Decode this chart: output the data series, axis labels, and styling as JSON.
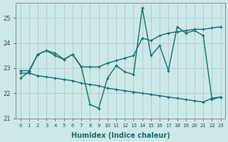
{
  "xlabel": "Humidex (Indice chaleur)",
  "background_color": "#cce8e8",
  "grid_color": "#aacfcf",
  "line_color": "#1a6b6b",
  "x_values": [
    0,
    1,
    2,
    3,
    4,
    5,
    6,
    7,
    8,
    9,
    10,
    11,
    12,
    13,
    14,
    15,
    16,
    17,
    18,
    19,
    20,
    21,
    22,
    23
  ],
  "series1": [
    22.6,
    22.85,
    23.55,
    23.7,
    23.5,
    23.35,
    23.55,
    23.05,
    21.55,
    21.4,
    22.6,
    23.1,
    22.85,
    22.75,
    25.4,
    23.5,
    23.9,
    22.9,
    24.65,
    24.4,
    24.5,
    24.3,
    21.75,
    21.85
  ],
  "series2": [
    22.9,
    22.9,
    23.55,
    23.7,
    23.6,
    23.35,
    23.55,
    23.05,
    23.05,
    23.05,
    23.2,
    23.3,
    23.4,
    23.5,
    24.2,
    24.1,
    24.3,
    24.4,
    24.45,
    24.5,
    24.55,
    24.55,
    24.6,
    24.65
  ],
  "series3": [
    22.8,
    22.8,
    22.7,
    22.65,
    22.6,
    22.55,
    22.5,
    22.4,
    22.35,
    22.3,
    22.2,
    22.15,
    22.1,
    22.05,
    22.0,
    21.95,
    21.9,
    21.85,
    21.8,
    21.75,
    21.7,
    21.65,
    21.8,
    21.85
  ],
  "ylim": [
    21.0,
    25.6
  ],
  "yticks": [
    21,
    22,
    23,
    24,
    25
  ],
  "xlim": [
    -0.5,
    23.5
  ],
  "linewidth": 1.0,
  "markersize": 3.5
}
